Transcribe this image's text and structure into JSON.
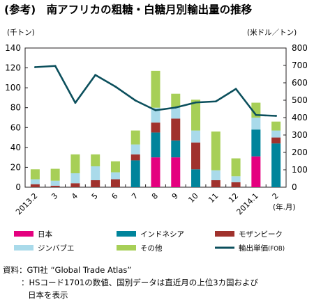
{
  "chart_data": {
    "type": "bar",
    "stacked": true,
    "title": "(参考)　南アフリカの粗糖・白糖月別輸出量の推移",
    "y_left_label": "(千トン)",
    "y_right_label": "(米ドル／トン)",
    "x_unit_label": "(年.月)",
    "categories": [
      "2013.2",
      "3",
      "4",
      "5",
      "6",
      "7",
      "8",
      "9",
      "10",
      "11",
      "12",
      "2014.1",
      "2"
    ],
    "y_left_range": [
      0,
      140
    ],
    "y_left_ticks": [
      "0",
      "20",
      "40",
      "60",
      "80",
      "100",
      "120",
      "140"
    ],
    "y_right_range": [
      0,
      800
    ],
    "y_right_ticks": [
      "0",
      "100",
      "200",
      "300",
      "400",
      "500",
      "600",
      "700",
      "800"
    ],
    "grid": false,
    "legend_position": "bottom",
    "series": [
      {
        "name": "日本",
        "color": "#e4007f",
        "values": [
          0,
          0,
          0,
          0,
          0,
          0,
          30,
          30,
          0,
          0,
          0,
          31,
          0
        ]
      },
      {
        "name": "インドネシア",
        "color": "#00849b",
        "values": [
          0,
          0,
          0,
          0,
          0,
          27,
          25,
          17,
          18,
          0,
          0,
          27,
          44
        ]
      },
      {
        "name": "モザンビーク",
        "color": "#a0322d",
        "values": [
          3,
          1.5,
          4,
          7,
          8,
          6,
          10,
          22,
          27,
          7,
          5,
          0,
          6
        ]
      },
      {
        "name": "ジンバブエ",
        "color": "#a9daea",
        "values": [
          5,
          5,
          10,
          14,
          7,
          10,
          15,
          11,
          12,
          10,
          6,
          12,
          7
        ]
      },
      {
        "name": "その他",
        "color": "#a7cf57",
        "values": [
          10,
          12,
          19,
          12,
          11,
          14,
          37,
          14,
          31,
          39,
          18,
          15,
          9
        ]
      }
    ],
    "line_series": {
      "name": "輸出単価",
      "note": "(FOB)",
      "color": "#0b4f5c",
      "axis": "right",
      "values": [
        690,
        697,
        485,
        645,
        578,
        498,
        442,
        458,
        487,
        493,
        565,
        415,
        410
      ]
    }
  },
  "source": {
    "line1": "資料：GTI社 “Global Trade Atlas”",
    "line2": "：HSコード1701の数値、国別データは直近月の上位3カ国および",
    "line3": "日本を表示"
  }
}
